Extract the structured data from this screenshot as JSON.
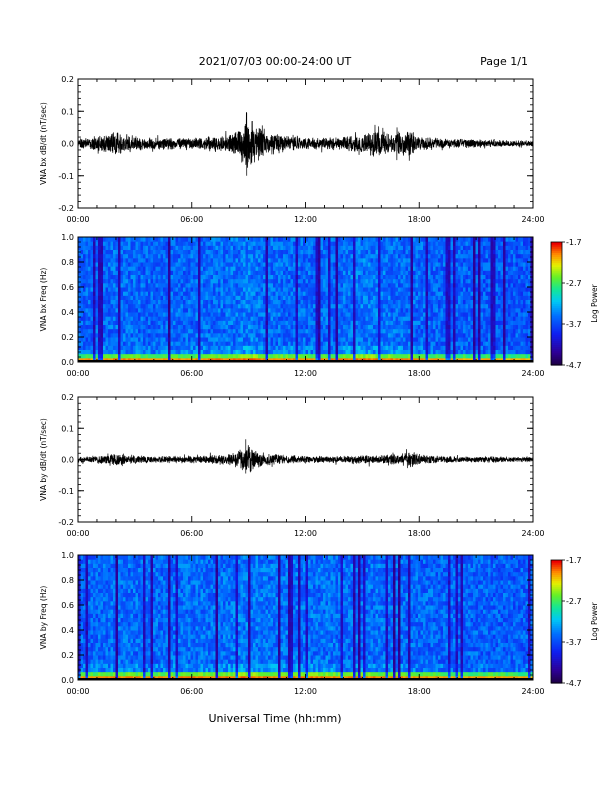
{
  "header": {
    "title": "2021/07/03  00:00-24:00 UT",
    "page": "Page 1/1"
  },
  "x_axis": {
    "label": "Universal Time (hh:mm)",
    "ticks": [
      "00:00",
      "06:00",
      "12:00",
      "18:00",
      "24:00"
    ]
  },
  "chart_data": [
    {
      "type": "line",
      "ylabel": "VNA bx dB/dt (nT/sec)",
      "xlim": [
        0,
        24
      ],
      "ylim": [
        -0.2,
        0.2
      ],
      "ytick_values": [
        -0.2,
        -0.1,
        0.0,
        0.1,
        0.2
      ],
      "ytick_labels": [
        "-0.2",
        "-0.1",
        "0.0",
        "0.1",
        "0.2"
      ],
      "xticks": [
        "00:00",
        "06:00",
        "12:00",
        "18:00",
        "24:00"
      ],
      "envelope": {
        "hours": [
          0,
          1,
          2,
          3,
          4,
          5,
          6,
          7,
          8,
          8.5,
          9,
          9.5,
          10,
          11,
          12,
          13,
          14,
          15,
          15.5,
          16,
          16.5,
          17,
          17.5,
          18,
          19,
          20,
          21,
          22,
          23,
          24
        ],
        "amplitude": [
          0.015,
          0.025,
          0.04,
          0.025,
          0.02,
          0.02,
          0.02,
          0.025,
          0.035,
          0.05,
          0.09,
          0.06,
          0.04,
          0.03,
          0.02,
          0.02,
          0.025,
          0.035,
          0.045,
          0.045,
          0.03,
          0.04,
          0.05,
          0.025,
          0.02,
          0.015,
          0.015,
          0.012,
          0.01,
          0.01
        ]
      },
      "peak": {
        "hour": 8.9,
        "max": 0.095,
        "min": -0.1
      }
    },
    {
      "type": "heatmap",
      "ylabel": "VNA bx Freq (Hz)",
      "xlim": [
        0,
        24
      ],
      "ylim": [
        0.0,
        1.0
      ],
      "ytick_values": [
        0.0,
        0.2,
        0.4,
        0.6,
        0.8,
        1.0
      ],
      "ytick_labels": [
        "0.0",
        "0.2",
        "0.4",
        "0.6",
        "0.8",
        "1.0"
      ],
      "xticks": [
        "00:00",
        "06:00",
        "12:00",
        "18:00",
        "24:00"
      ],
      "colorbar": {
        "label": "Log Power",
        "range": [
          -4.7,
          -1.7
        ],
        "tick_values": [
          -1.7,
          -2.7,
          -3.7,
          -4.7
        ],
        "tick_labels": [
          "-1.7",
          "-2.7",
          "-3.7",
          "-4.7"
        ]
      },
      "activity_hours": [
        0,
        2,
        4,
        6,
        8,
        9,
        10,
        12,
        14,
        15,
        16,
        18,
        20,
        22,
        24
      ],
      "activity_level": [
        0.35,
        0.6,
        0.45,
        0.5,
        0.65,
        0.85,
        0.6,
        0.5,
        0.6,
        0.8,
        0.7,
        0.5,
        0.35,
        0.3,
        0.25
      ]
    },
    {
      "type": "line",
      "ylabel": "VNA by dB/dt (nT/sec)",
      "xlim": [
        0,
        24
      ],
      "ylim": [
        -0.2,
        0.2
      ],
      "ytick_values": [
        -0.2,
        -0.1,
        0.0,
        0.1,
        0.2
      ],
      "ytick_labels": [
        "-0.2",
        "-0.1",
        "0.0",
        "0.1",
        "0.2"
      ],
      "xticks": [
        "00:00",
        "06:00",
        "12:00",
        "18:00",
        "24:00"
      ],
      "envelope": {
        "hours": [
          0,
          1,
          2,
          3,
          4,
          5,
          6,
          7,
          8,
          8.5,
          9,
          9.5,
          10,
          11,
          12,
          13,
          14,
          15,
          16,
          17,
          17.5,
          18,
          19,
          20,
          21,
          22,
          23,
          24
        ],
        "amplitude": [
          0.01,
          0.012,
          0.025,
          0.015,
          0.012,
          0.012,
          0.013,
          0.015,
          0.02,
          0.03,
          0.045,
          0.03,
          0.02,
          0.015,
          0.012,
          0.012,
          0.013,
          0.015,
          0.015,
          0.02,
          0.03,
          0.018,
          0.013,
          0.012,
          0.01,
          0.01,
          0.009,
          0.009
        ]
      },
      "peak": {
        "hour": 8.85,
        "max": 0.065,
        "min": -0.045
      }
    },
    {
      "type": "heatmap",
      "ylabel": "VNA by Freq (Hz)",
      "xlim": [
        0,
        24
      ],
      "ylim": [
        0.0,
        1.0
      ],
      "ytick_values": [
        0.0,
        0.2,
        0.4,
        0.6,
        0.8,
        1.0
      ],
      "ytick_labels": [
        "0.0",
        "0.2",
        "0.4",
        "0.6",
        "0.8",
        "1.0"
      ],
      "xticks": [
        "00:00",
        "06:00",
        "12:00",
        "18:00",
        "24:00"
      ],
      "colorbar": {
        "label": "Log Power",
        "range": [
          -4.7,
          -1.7
        ],
        "tick_values": [
          -1.7,
          -2.7,
          -3.7,
          -4.7
        ],
        "tick_labels": [
          "-1.7",
          "-2.7",
          "-3.7",
          "-4.7"
        ]
      },
      "activity_hours": [
        0,
        2,
        4,
        6,
        8,
        9,
        10,
        12,
        14,
        15,
        16,
        18,
        20,
        22,
        24
      ],
      "activity_level": [
        0.45,
        0.6,
        0.55,
        0.6,
        0.7,
        0.8,
        0.65,
        0.7,
        0.6,
        0.65,
        0.6,
        0.5,
        0.45,
        0.4,
        0.35
      ]
    }
  ]
}
